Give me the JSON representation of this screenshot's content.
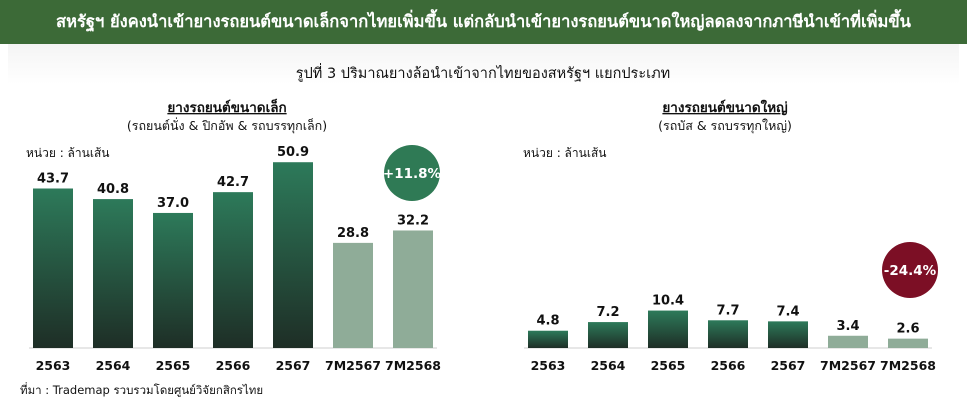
{
  "header": {
    "banner": "สหรัฐฯ ยังคงนำเข้ายางรถยนต์ขนาดเล็กจากไทยเพิ่มขึ้น แต่กลับนำเข้ายางรถยนต์ขนาดใหญ่ลดลงจากภาษีนำเข้าที่เพิ่มขึ้น",
    "figure_title": "รูปที่ 3 ปริมาณยางล้อนำเข้าจากไทยของสหรัฐฯ แยกประเภท"
  },
  "colors": {
    "banner": "#3c6a37",
    "bar_dark_top": "#2d7a5a",
    "bar_dark_bottom": "#1e2e26",
    "bar_light": "#8fac98",
    "badge_up": "#2f7a55",
    "badge_down": "#7c0f25"
  },
  "source": "ที่มา : Trademap รวบรวมโดยศูนย์วิจัยกสิกรไทย",
  "chart_data": [
    {
      "type": "bar",
      "title": "ยางรถยนต์ขนาดเล็ก",
      "subtitle": "(รถยนต์นั่ง & ปิกอัพ & รถบรรทุกเล็ก)",
      "unit": "หน่วย : ล้านเส้น",
      "categories": [
        "2563",
        "2564",
        "2565",
        "2566",
        "2567",
        "7M2567",
        "7M2568"
      ],
      "values": [
        43.7,
        40.8,
        37.0,
        42.7,
        50.9,
        28.8,
        32.2
      ],
      "value_labels": [
        "43.7",
        "40.8",
        "37.0",
        "42.7",
        "50.9",
        "28.8",
        "32.2"
      ],
      "highlight": [
        false,
        false,
        false,
        false,
        false,
        true,
        true
      ],
      "change_badge": "+11.8%"
    },
    {
      "type": "bar",
      "title": "ยางรถยนต์ขนาดใหญ่",
      "subtitle": "(รถบัส & รถบรรทุกใหญ่)",
      "unit": "หน่วย : ล้านเส้น",
      "categories": [
        "2563",
        "2564",
        "2565",
        "2566",
        "2567",
        "7M2567",
        "7M2568"
      ],
      "values": [
        4.8,
        7.2,
        10.4,
        7.7,
        7.4,
        3.4,
        2.6
      ],
      "value_labels": [
        "4.8",
        "7.2",
        "10.4",
        "7.7",
        "7.4",
        "3.4",
        "2.6"
      ],
      "highlight": [
        false,
        false,
        false,
        false,
        false,
        true,
        true
      ],
      "change_badge": "-24.4%"
    }
  ]
}
